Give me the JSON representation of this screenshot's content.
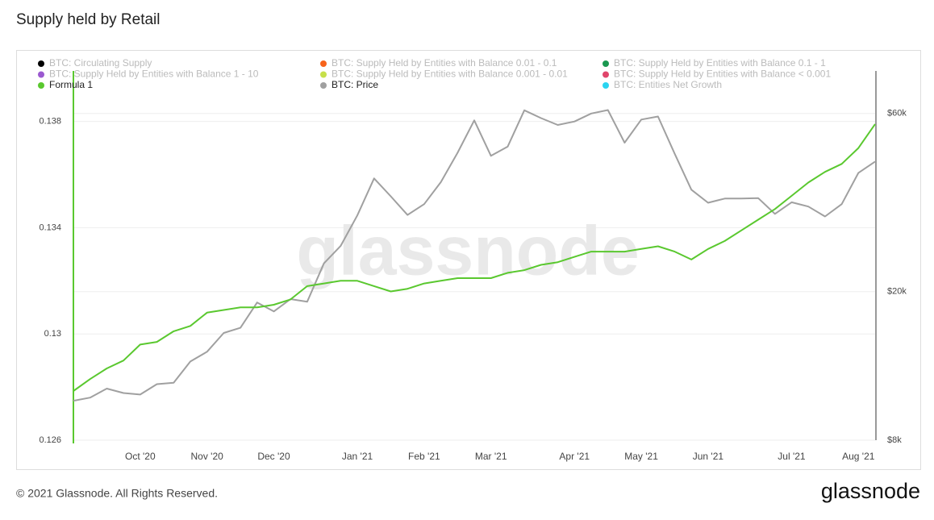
{
  "chart_data": {
    "type": "line",
    "title": "Supply held by Retail",
    "footer": "© 2021 Glassnode. All Rights Reserved.",
    "logo": "glassnode",
    "watermark": "glassnode",
    "categories": [
      null,
      null,
      null,
      null,
      "Oct '20",
      null,
      null,
      null,
      "Nov '20",
      null,
      null,
      null,
      "Dec '20",
      null,
      null,
      null,
      null,
      "Jan '21",
      null,
      null,
      null,
      "Feb '21",
      null,
      null,
      null,
      "Mar '21",
      null,
      null,
      null,
      null,
      "Apr '21",
      null,
      null,
      null,
      "May '21",
      null,
      null,
      null,
      "Jun '21",
      null,
      null,
      null,
      null,
      "Jul '21",
      null,
      null,
      null,
      "Aug '21",
      null
    ],
    "ylim": [
      0.126,
      0.1399
    ],
    "yticks": [
      0.126,
      0.13,
      0.134,
      0.138
    ],
    "y2lim": [
      8000,
      78000
    ],
    "y2log": true,
    "y2ticks": [
      {
        "value": 8000,
        "label": "$8k"
      },
      {
        "value": 20000,
        "label": "$20k"
      },
      {
        "value": 60000,
        "label": "$60k"
      }
    ],
    "grid": true,
    "series": [
      {
        "name": "BTC: Circulating Supply",
        "color": "#000000",
        "visible": false
      },
      {
        "name": "BTC: Supply Held by Entities with Balance 0.01 - 0.1",
        "color": "#f7631b",
        "visible": false
      },
      {
        "name": "BTC: Supply Held by Entities with Balance 0.1 - 1",
        "color": "#1a9850",
        "visible": false
      },
      {
        "name": "BTC: Supply Held by Entities with Balance 1 - 10",
        "color": "#9b59d0",
        "visible": false
      },
      {
        "name": "BTC: Supply Held by Entities with Balance 0.001 - 0.01",
        "color": "#c6e04a",
        "visible": false
      },
      {
        "name": "BTC: Supply Held by Entities with Balance < 0.001",
        "color": "#e0456b",
        "visible": false
      },
      {
        "name": "Formula 1",
        "color": "#5ac82f",
        "visible": true,
        "values": [
          0.12785,
          0.1283,
          0.1287,
          0.129,
          0.1296,
          0.1297,
          0.1301,
          0.1303,
          0.1308,
          0.1309,
          0.131,
          0.131,
          0.1311,
          0.1313,
          0.1318,
          0.1319,
          0.132,
          0.132,
          0.1318,
          0.1316,
          0.1317,
          0.1319,
          0.132,
          0.1321,
          0.1321,
          0.1321,
          0.1323,
          0.1324,
          0.1326,
          0.1327,
          0.1329,
          0.1331,
          0.1331,
          0.1331,
          0.1332,
          0.1333,
          0.1331,
          0.1328,
          0.1332,
          0.1335,
          0.1339,
          0.1343,
          0.1347,
          0.1352,
          0.1357,
          0.1361,
          0.1364,
          0.137,
          0.1379
        ]
      },
      {
        "name": "BTC: Price",
        "color": "#a0a0a0",
        "visible": true,
        "axis": "y2",
        "values": [
          10200,
          10400,
          11000,
          10700,
          10600,
          11300,
          11400,
          13000,
          13800,
          15500,
          16000,
          18700,
          17700,
          19100,
          18800,
          23800,
          26500,
          32000,
          40200,
          36000,
          32100,
          34300,
          39300,
          47100,
          57500,
          46200,
          48900,
          61200,
          58300,
          55900,
          57100,
          60000,
          61300,
          50100,
          57800,
          58900,
          46800,
          37500,
          34600,
          35500,
          35500,
          35600,
          32300,
          34700,
          33800,
          31800,
          34300,
          41600,
          44600
        ]
      },
      {
        "name": "BTC: Entities Net Growth",
        "color": "#2ad4f0",
        "visible": false
      }
    ]
  }
}
